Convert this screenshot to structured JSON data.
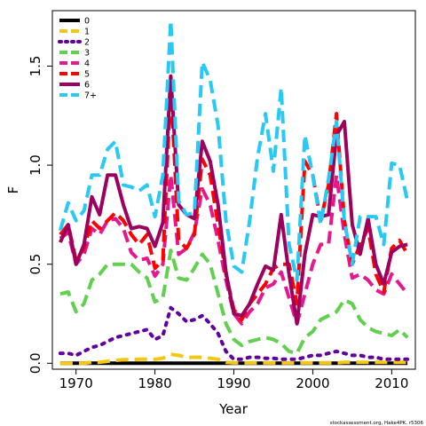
{
  "chart_data": {
    "type": "line",
    "title": "",
    "xlabel": "Year",
    "ylabel": "F",
    "xlim": [
      1967,
      2013
    ],
    "ylim": [
      -0.03,
      1.78
    ],
    "xticks": [
      1970,
      1980,
      1990,
      2000,
      2010
    ],
    "yticks": [
      0.0,
      0.5,
      1.0,
      1.5
    ],
    "ytick_labels": [
      "0.0",
      "0.5",
      "1.0",
      "1.5"
    ],
    "legend_placement": "top-left",
    "grid": false,
    "footnote": "stockassessment.org, Hake4PK, r5306",
    "x": [
      1968,
      1969,
      1970,
      1971,
      1972,
      1973,
      1974,
      1975,
      1976,
      1977,
      1978,
      1979,
      1980,
      1981,
      1982,
      1983,
      1984,
      1985,
      1986,
      1987,
      1988,
      1989,
      1990,
      1991,
      1992,
      1993,
      1994,
      1995,
      1996,
      1997,
      1998,
      1999,
      2000,
      2001,
      2002,
      2003,
      2004,
      2005,
      2006,
      2007,
      2008,
      2009,
      2010,
      2011,
      2012
    ],
    "series": [
      {
        "name": "0",
        "color": "#000000",
        "dash": "solid",
        "values": [
          0,
          0,
          0,
          0,
          0,
          0,
          0,
          0,
          0,
          0,
          0,
          0,
          0,
          0,
          0,
          0,
          0,
          0,
          0,
          0,
          0,
          0,
          0,
          0,
          0,
          0,
          0,
          0,
          0,
          0,
          0,
          0,
          0,
          0,
          0,
          0,
          0,
          0,
          0,
          0,
          0,
          0,
          0,
          0,
          0
        ]
      },
      {
        "name": "1",
        "color": "#f5c710",
        "dash": "dashed",
        "values": [
          0,
          0,
          0,
          0,
          0.005,
          0.005,
          0.01,
          0.015,
          0.018,
          0.018,
          0.02,
          0.02,
          0.02,
          0.025,
          0.045,
          0.04,
          0.03,
          0.03,
          0.03,
          0.025,
          0.02,
          0.005,
          0.002,
          0.002,
          0.002,
          0.002,
          0.002,
          0.002,
          0.002,
          0.002,
          0.002,
          0.002,
          0.002,
          0.002,
          0.002,
          0.002,
          0.005,
          0.005,
          0.005,
          0.005,
          0.005,
          0.005,
          0.005,
          0.005,
          0.005
        ]
      },
      {
        "name": "2",
        "color": "#61009e",
        "dash": "dotted",
        "values": [
          0.05,
          0.05,
          0.04,
          0.06,
          0.08,
          0.09,
          0.11,
          0.13,
          0.14,
          0.15,
          0.16,
          0.17,
          0.12,
          0.14,
          0.28,
          0.25,
          0.21,
          0.22,
          0.24,
          0.2,
          0.15,
          0.06,
          0.02,
          0.02,
          0.03,
          0.03,
          0.025,
          0.025,
          0.02,
          0.02,
          0.02,
          0.03,
          0.04,
          0.04,
          0.05,
          0.06,
          0.05,
          0.04,
          0.04,
          0.03,
          0.03,
          0.02,
          0.02,
          0.02,
          0.02
        ]
      },
      {
        "name": "3",
        "color": "#61d04f",
        "dash": "dashed",
        "values": [
          0.35,
          0.36,
          0.26,
          0.3,
          0.42,
          0.45,
          0.5,
          0.5,
          0.5,
          0.5,
          0.46,
          0.43,
          0.31,
          0.33,
          0.57,
          0.43,
          0.42,
          0.48,
          0.55,
          0.5,
          0.35,
          0.2,
          0.12,
          0.09,
          0.11,
          0.12,
          0.13,
          0.12,
          0.1,
          0.06,
          0.05,
          0.13,
          0.16,
          0.22,
          0.24,
          0.26,
          0.32,
          0.3,
          0.22,
          0.18,
          0.16,
          0.15,
          0.14,
          0.17,
          0.13
        ]
      },
      {
        "name": "4",
        "color": "#e5198f",
        "dash": "dashed",
        "values": [
          0.63,
          0.66,
          0.5,
          0.55,
          0.68,
          0.65,
          0.72,
          0.73,
          0.68,
          0.56,
          0.52,
          0.53,
          0.44,
          0.5,
          0.95,
          0.55,
          0.58,
          0.66,
          0.88,
          0.8,
          0.62,
          0.42,
          0.25,
          0.2,
          0.26,
          0.3,
          0.38,
          0.4,
          0.46,
          0.33,
          0.2,
          0.35,
          0.5,
          0.6,
          0.6,
          0.95,
          0.65,
          0.43,
          0.45,
          0.42,
          0.37,
          0.35,
          0.45,
          0.4,
          0.35
        ]
      },
      {
        "name": "5",
        "color": "#ff0000",
        "dash": "dashed",
        "values": [
          0.65,
          0.7,
          0.52,
          0.58,
          0.72,
          0.68,
          0.72,
          0.76,
          0.72,
          0.65,
          0.6,
          0.65,
          0.48,
          0.52,
          1.4,
          0.62,
          0.58,
          0.65,
          1.03,
          0.95,
          0.7,
          0.45,
          0.27,
          0.22,
          0.3,
          0.35,
          0.4,
          0.48,
          0.5,
          0.5,
          0.3,
          1.02,
          0.95,
          0.72,
          0.9,
          1.26,
          0.72,
          0.5,
          0.6,
          0.68,
          0.45,
          0.36,
          0.58,
          0.62,
          0.55
        ]
      },
      {
        "name": "6",
        "color": "#9e005d",
        "dash": "solid",
        "values": [
          0.61,
          0.7,
          0.5,
          0.6,
          0.84,
          0.75,
          0.95,
          0.95,
          0.8,
          0.68,
          0.69,
          0.68,
          0.59,
          0.71,
          1.45,
          0.8,
          0.75,
          0.73,
          1.12,
          1.02,
          0.8,
          0.46,
          0.25,
          0.24,
          0.3,
          0.4,
          0.49,
          0.47,
          0.75,
          0.45,
          0.2,
          0.55,
          0.75,
          0.74,
          0.75,
          1.15,
          1.22,
          0.7,
          0.55,
          0.73,
          0.5,
          0.4,
          0.56,
          0.59,
          0.6
        ]
      },
      {
        "name": "7+",
        "color": "#28c9f5",
        "dash": "dashed",
        "values": [
          0.67,
          0.81,
          0.72,
          0.77,
          0.95,
          0.95,
          1.08,
          1.12,
          0.9,
          0.89,
          0.87,
          0.9,
          0.74,
          0.95,
          1.73,
          0.82,
          0.75,
          0.76,
          1.52,
          1.43,
          1.2,
          0.72,
          0.49,
          0.46,
          0.72,
          1.04,
          1.26,
          0.97,
          1.39,
          0.6,
          0.42,
          1.15,
          0.95,
          0.7,
          0.93,
          1.22,
          0.72,
          0.5,
          0.74,
          0.74,
          0.74,
          0.6,
          1.01,
          1.0,
          0.82
        ]
      }
    ]
  }
}
